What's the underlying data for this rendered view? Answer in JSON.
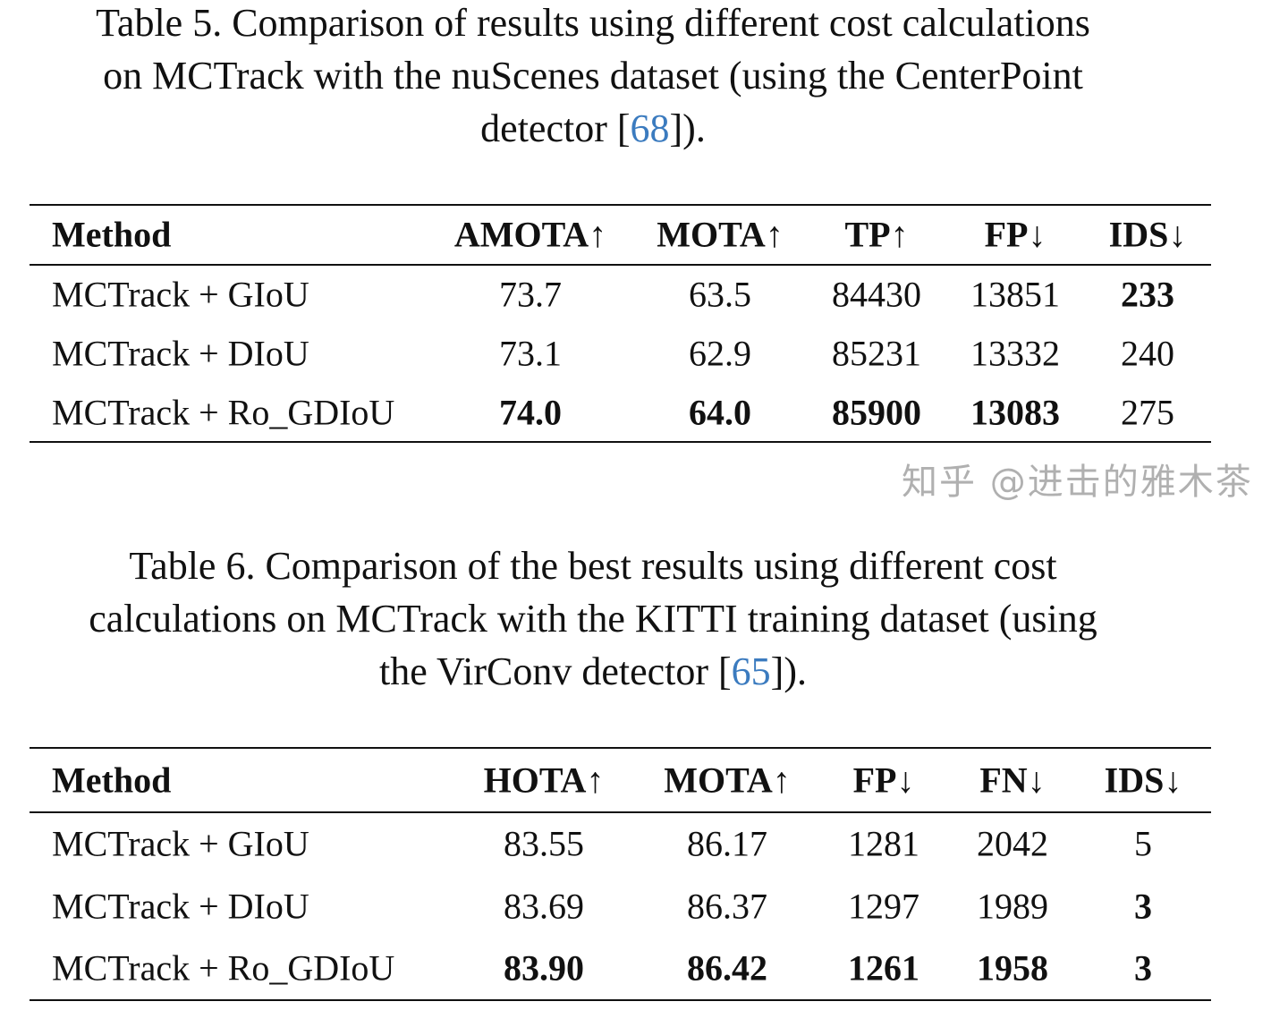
{
  "table5": {
    "caption_line1": "Table 5. Comparison of results using different cost calculations",
    "caption_line2": "on MCTrack with the nuScenes dataset (using the CenterPoint",
    "caption_line3_pre": "detector [",
    "caption_cite": "68",
    "caption_line3_post": "]).",
    "headers": [
      "Method",
      "AMOTA↑",
      "MOTA↑",
      "TP↑",
      "FP↓",
      "IDS↓"
    ],
    "rows": [
      {
        "cells": [
          "MCTrack + GIoU",
          "73.7",
          "63.5",
          "84430",
          "13851",
          "233"
        ],
        "bold": [
          false,
          false,
          false,
          false,
          false,
          true
        ]
      },
      {
        "cells": [
          "MCTrack + DIoU",
          "73.1",
          "62.9",
          "85231",
          "13332",
          "240"
        ],
        "bold": [
          false,
          false,
          false,
          false,
          false,
          false
        ]
      },
      {
        "cells": [
          "MCTrack + Ro_GDIoU",
          "74.0",
          "64.0",
          "85900",
          "13083",
          "275"
        ],
        "bold": [
          false,
          true,
          true,
          true,
          true,
          false
        ]
      }
    ]
  },
  "table6": {
    "caption_line1": "Table 6. Comparison of the best results using different cost",
    "caption_line2": "calculations on MCTrack with the KITTI training dataset (using",
    "caption_line3_pre": "the VirConv detector [",
    "caption_cite": "65",
    "caption_line3_post": "]).",
    "headers": [
      "Method",
      "HOTA↑",
      "MOTA↑",
      "FP↓",
      "FN↓",
      "IDS↓"
    ],
    "rows": [
      {
        "cells": [
          "MCTrack + GIoU",
          "83.55",
          "86.17",
          "1281",
          "2042",
          "5"
        ],
        "bold": [
          false,
          false,
          false,
          false,
          false,
          false
        ]
      },
      {
        "cells": [
          "MCTrack + DIoU",
          "83.69",
          "86.37",
          "1297",
          "1989",
          "3"
        ],
        "bold": [
          false,
          false,
          false,
          false,
          false,
          true
        ]
      },
      {
        "cells": [
          "MCTrack + Ro_GDIoU",
          "83.90",
          "86.42",
          "1261",
          "1958",
          "3"
        ],
        "bold": [
          false,
          true,
          true,
          true,
          true,
          true
        ]
      }
    ]
  },
  "watermark": "知乎 @进击的雅木茶",
  "colors": {
    "citation": "#3b7bbf"
  }
}
